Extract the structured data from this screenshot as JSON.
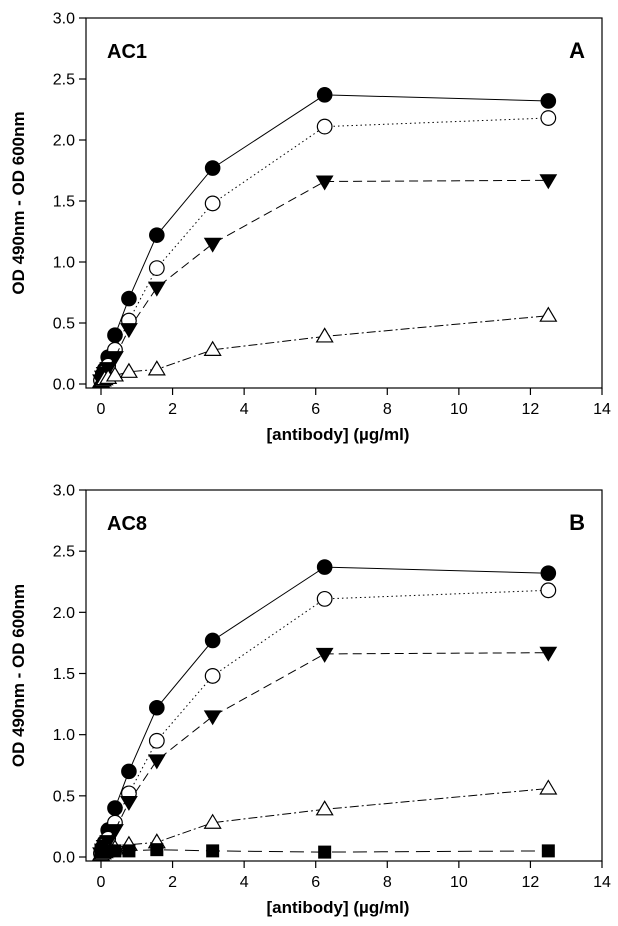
{
  "chart_data": [
    {
      "type": "line",
      "title": "AC1",
      "panel_label": "A",
      "xlabel": "[antibody] (µg/ml)",
      "ylabel": "OD 490nm - OD 600nm",
      "xlim": [
        0,
        14
      ],
      "ylim": [
        0,
        3.0
      ],
      "xticks": [
        "0",
        "2",
        "4",
        "6",
        "8",
        "10",
        "12",
        "14"
      ],
      "yticks": [
        "0.0",
        "0.5",
        "1.0",
        "1.5",
        "2.0",
        "2.5",
        "3.0"
      ],
      "grid": false,
      "series": [
        {
          "marker": "filled-circle",
          "line": "solid",
          "x": [
            0,
            0.05,
            0.1,
            0.2,
            0.39,
            0.78,
            1.56,
            3.12,
            6.25,
            12.5
          ],
          "y": [
            0.03,
            0.08,
            0.12,
            0.22,
            0.4,
            0.7,
            1.22,
            1.77,
            2.37,
            2.32
          ]
        },
        {
          "marker": "open-circle",
          "line": "dotted",
          "x": [
            0,
            0.05,
            0.1,
            0.2,
            0.39,
            0.78,
            1.56,
            3.12,
            6.25,
            12.5
          ],
          "y": [
            0.03,
            0.07,
            0.1,
            0.15,
            0.28,
            0.52,
            0.95,
            1.48,
            2.11,
            2.18
          ]
        },
        {
          "marker": "filled-triangle-down",
          "line": "dashed",
          "x": [
            0,
            0.05,
            0.1,
            0.2,
            0.39,
            0.78,
            1.56,
            3.12,
            6.25,
            12.5
          ],
          "y": [
            0.03,
            0.06,
            0.09,
            0.13,
            0.22,
            0.45,
            0.79,
            1.15,
            1.66,
            1.67
          ]
        },
        {
          "marker": "open-triangle-up",
          "line": "dash-dot",
          "x": [
            0,
            0.05,
            0.1,
            0.2,
            0.39,
            0.78,
            1.56,
            3.12,
            6.25,
            12.5
          ],
          "y": [
            0.02,
            0.03,
            0.04,
            0.05,
            0.07,
            0.1,
            0.12,
            0.28,
            0.39,
            0.56
          ]
        }
      ]
    },
    {
      "type": "line",
      "title": "AC8",
      "panel_label": "B",
      "xlabel": "[antibody] (µg/ml)",
      "ylabel": "OD 490nm - OD 600nm",
      "xlim": [
        0,
        14
      ],
      "ylim": [
        0,
        3.0
      ],
      "xticks": [
        "0",
        "2",
        "4",
        "6",
        "8",
        "10",
        "12",
        "14"
      ],
      "yticks": [
        "0.0",
        "0.5",
        "1.0",
        "1.5",
        "2.0",
        "2.5",
        "3.0"
      ],
      "grid": false,
      "series": [
        {
          "marker": "filled-circle",
          "line": "solid",
          "x": [
            0,
            0.05,
            0.1,
            0.2,
            0.39,
            0.78,
            1.56,
            3.12,
            6.25,
            12.5
          ],
          "y": [
            0.03,
            0.08,
            0.12,
            0.22,
            0.4,
            0.7,
            1.22,
            1.77,
            2.37,
            2.32
          ]
        },
        {
          "marker": "open-circle",
          "line": "dotted",
          "x": [
            0,
            0.05,
            0.1,
            0.2,
            0.39,
            0.78,
            1.56,
            3.12,
            6.25,
            12.5
          ],
          "y": [
            0.03,
            0.07,
            0.1,
            0.15,
            0.28,
            0.52,
            0.95,
            1.48,
            2.11,
            2.18
          ]
        },
        {
          "marker": "filled-triangle-down",
          "line": "dashed",
          "x": [
            0,
            0.05,
            0.1,
            0.2,
            0.39,
            0.78,
            1.56,
            3.12,
            6.25,
            12.5
          ],
          "y": [
            0.03,
            0.06,
            0.09,
            0.13,
            0.22,
            0.45,
            0.79,
            1.15,
            1.66,
            1.67
          ]
        },
        {
          "marker": "open-triangle-up",
          "line": "dash-dot",
          "x": [
            0,
            0.05,
            0.1,
            0.2,
            0.39,
            0.78,
            1.56,
            3.12,
            6.25,
            12.5
          ],
          "y": [
            0.02,
            0.03,
            0.04,
            0.05,
            0.07,
            0.1,
            0.12,
            0.28,
            0.39,
            0.56
          ]
        },
        {
          "marker": "filled-square",
          "line": "long-dash",
          "x": [
            0,
            0.05,
            0.1,
            0.2,
            0.39,
            0.78,
            1.56,
            3.12,
            6.25,
            12.5
          ],
          "y": [
            0.05,
            0.05,
            0.05,
            0.05,
            0.05,
            0.05,
            0.06,
            0.05,
            0.04,
            0.05
          ]
        }
      ]
    }
  ]
}
